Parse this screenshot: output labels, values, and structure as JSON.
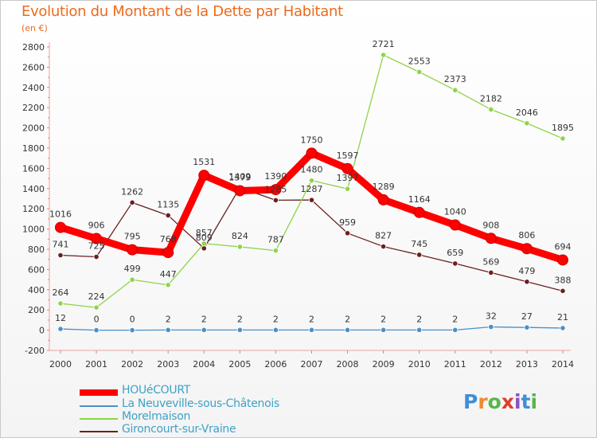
{
  "header": {
    "title": "Evolution du Montant de la Dette par Habitant",
    "subtitle": "(en €)"
  },
  "logo": {
    "text": "Proxiti",
    "colors": [
      "#3e8fd6",
      "#f08a2c",
      "#5bb548",
      "#e23b2e",
      "#8a4fc2",
      "#3e8fd6",
      "#5bb548"
    ]
  },
  "chart_data": {
    "type": "line",
    "title": "Evolution du Montant de la Dette par Habitant",
    "subtitle": "(en €)",
    "ylim": [
      -200,
      2800
    ],
    "yticks": [
      -200,
      0,
      200,
      400,
      600,
      800,
      1000,
      1200,
      1400,
      1600,
      1800,
      2000,
      2200,
      2400,
      2600,
      2800
    ],
    "grid": false,
    "legend_position": "bottom-left",
    "x": [
      "2000",
      "2001",
      "2002",
      "2003",
      "2004",
      "2005",
      "2006",
      "2007",
      "2008",
      "2009",
      "2010",
      "2011",
      "2012",
      "2013",
      "2014"
    ],
    "series": [
      {
        "name": "HOUéCOURT",
        "color": "#ff0000",
        "values": [
          1016,
          906,
          795,
          768,
          1531,
          1379,
          1390,
          1750,
          1597,
          1289,
          1164,
          1040,
          908,
          806,
          694
        ]
      },
      {
        "name": "La Neuveville-sous-Châtenois",
        "color": "#4a90c6",
        "values": [
          12,
          0,
          0,
          2,
          2,
          2,
          2,
          2,
          2,
          2,
          2,
          2,
          32,
          27,
          21
        ]
      },
      {
        "name": "Morelmaison",
        "color": "#8ed44a",
        "values": [
          264,
          224,
          499,
          447,
          857,
          824,
          787,
          1480,
          1397,
          2721,
          2553,
          2373,
          2182,
          2046,
          1895
        ]
      },
      {
        "name": "Gironcourt-sur-Vraine",
        "color": "#6b1f1f",
        "values": [
          741,
          725,
          1262,
          1135,
          809,
          1409,
          1285,
          1287,
          959,
          827,
          745,
          659,
          569,
          479,
          388
        ]
      }
    ]
  }
}
